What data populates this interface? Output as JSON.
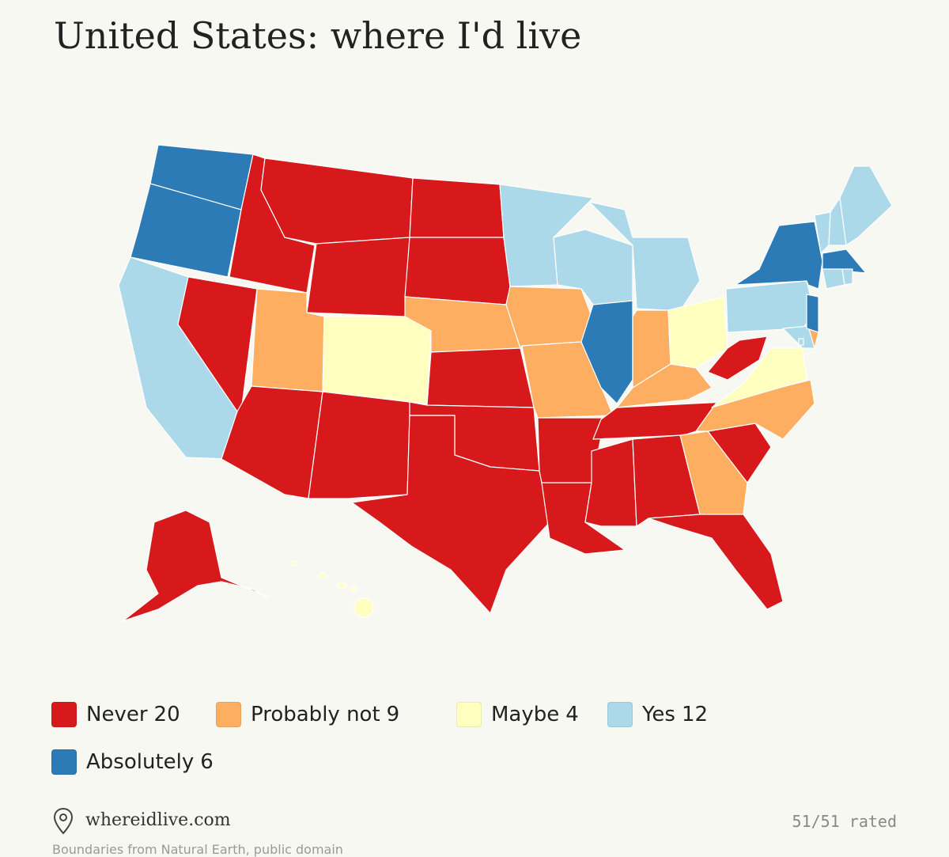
{
  "title": "United States: where I'd live",
  "legend": [
    {
      "label": "Never",
      "count": 20,
      "color": "#d7191c"
    },
    {
      "label": "Probably not",
      "count": 9,
      "color": "#fdae61"
    },
    {
      "label": "Maybe",
      "count": 4,
      "color": "#ffffbf"
    },
    {
      "label": "Yes",
      "count": 12,
      "color": "#abd9e9"
    },
    {
      "label": "Absolutely",
      "count": 6,
      "color": "#2c7bb6"
    }
  ],
  "footer": {
    "site": "whereidlive.com",
    "progress": "51/51 rated",
    "credit": "Boundaries from Natural Earth, public domain"
  }
}
